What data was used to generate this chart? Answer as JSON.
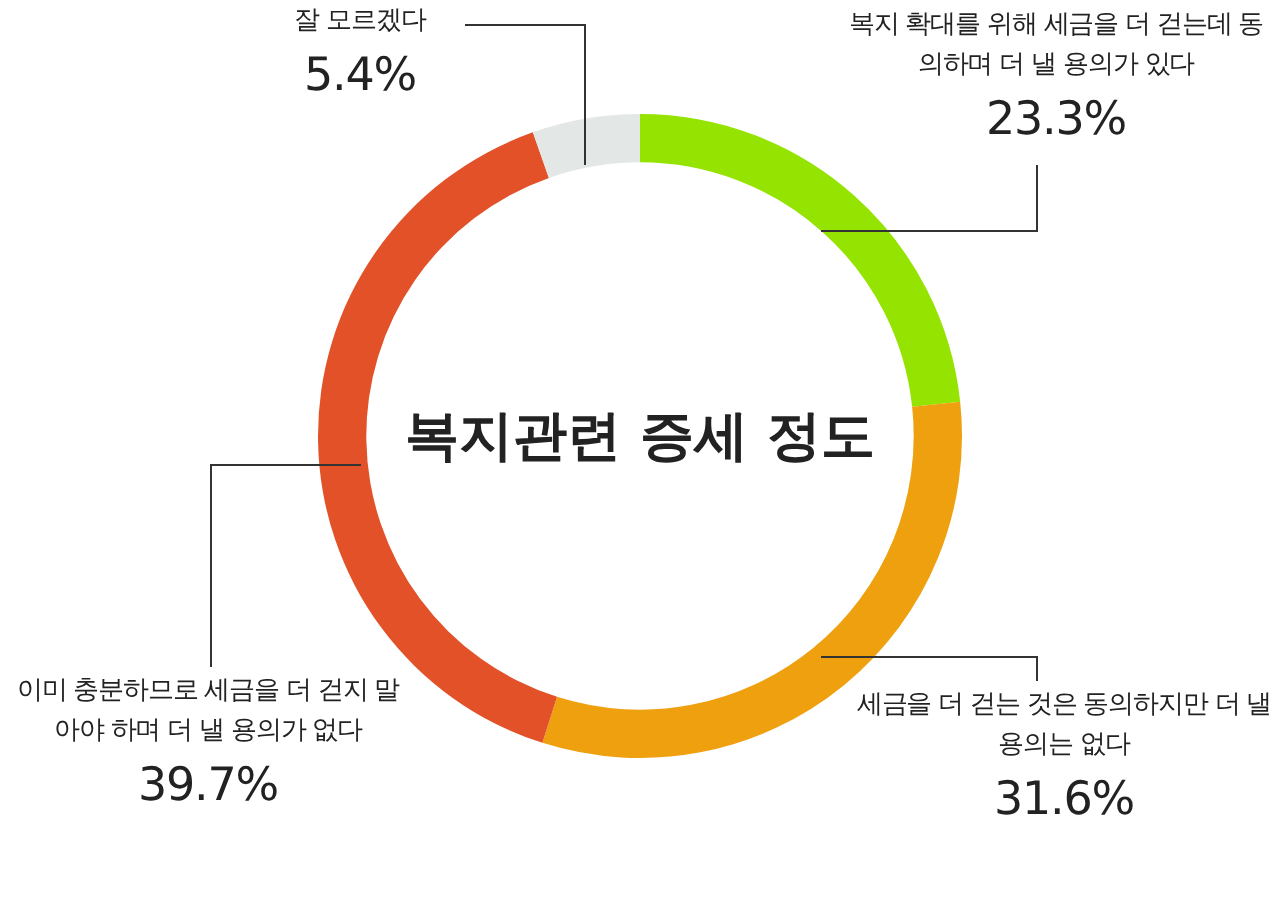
{
  "chart_data": {
    "type": "donut",
    "title": "복지관련 증세 정도",
    "categories": [
      "복지 확대를 위해 세금을 더 걷는데 동의하며 더 낼 용의가 있다",
      "세금을 더 걷는 것은 동의하지만 더 낼 용의는 없다",
      "이미 충분하므로 세금을 더 걷지 말아야 하며 더 낼 용의가 없다",
      "잘 모르겠다"
    ],
    "values": [
      23.3,
      31.6,
      39.7,
      5.4
    ],
    "value_labels": [
      "23.3%",
      "31.6%",
      "39.7%",
      "5.4%"
    ],
    "colors": [
      "#95e300",
      "#efa00f",
      "#e25128",
      "#e3e8e6"
    ]
  }
}
